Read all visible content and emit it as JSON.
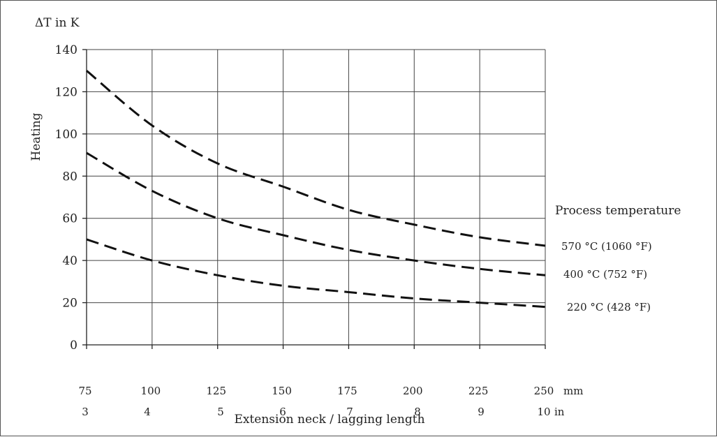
{
  "chart_data": {
    "type": "line",
    "y_unit_label": "ΔT in K",
    "ylabel": "Heating",
    "xlabel": "Extension neck / lagging length",
    "ylim": [
      0,
      140
    ],
    "y_ticks": [
      "0",
      "20",
      "40",
      "60",
      "80",
      "100",
      "120",
      "140"
    ],
    "xlim": [
      75,
      250
    ],
    "x_ticks_mm": [
      "75",
      "100",
      "125",
      "150",
      "175",
      "200",
      "225",
      "250"
    ],
    "x_unit_mm": "mm",
    "x_ticks_in": [
      "3",
      "4",
      "5",
      "6",
      "7",
      "8",
      "9",
      "10"
    ],
    "x_unit_in": "in",
    "legend_title": "Process temperature",
    "x": [
      75,
      100,
      125,
      150,
      175,
      200,
      225,
      250
    ],
    "series": [
      {
        "name": "570 °C (1060 °F)",
        "values": [
          130,
          104,
          86,
          75,
          64,
          57,
          51,
          47
        ]
      },
      {
        "name": "400 °C (752 °F)",
        "values": [
          91,
          73,
          60,
          52,
          45,
          40,
          36,
          33
        ]
      },
      {
        "name": "220 °C (428 °F)",
        "values": [
          50,
          40,
          33,
          28,
          25,
          22,
          20,
          18
        ]
      }
    ]
  }
}
